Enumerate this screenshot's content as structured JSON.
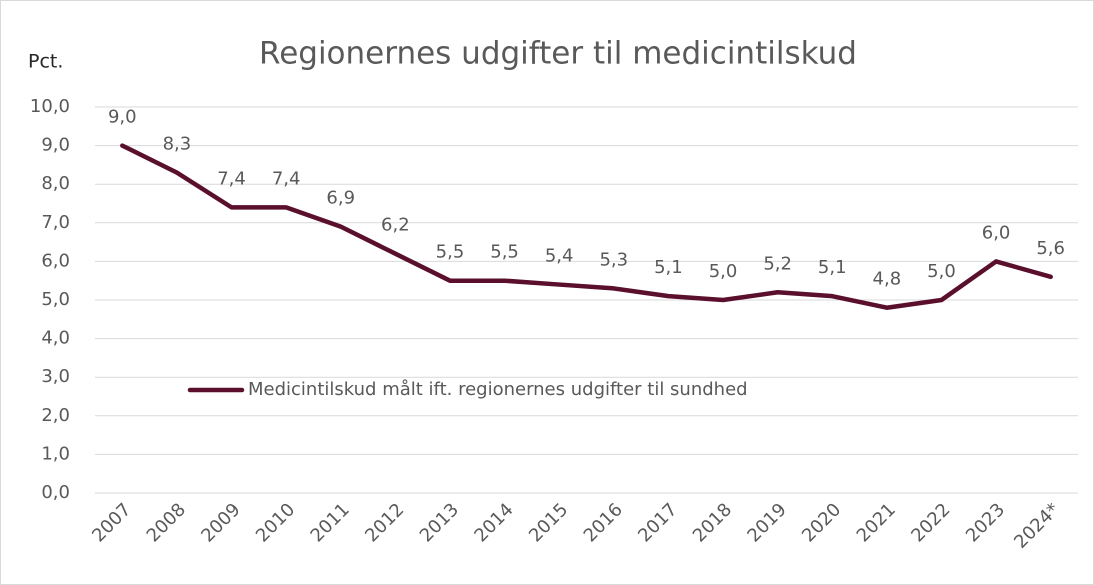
{
  "chart_data": {
    "type": "line",
    "title": "Regionernes udgifter til medicintilskud",
    "y_label": "Pct.",
    "categories": [
      "2007",
      "2008",
      "2009",
      "2010",
      "2011",
      "2012",
      "2013",
      "2014",
      "2015",
      "2016",
      "2017",
      "2018",
      "2019",
      "2020",
      "2021",
      "2022",
      "2023",
      "2024*"
    ],
    "series": [
      {
        "name": "Medicintilskud målt ift. regionernes udgifter til sundhed",
        "color": "#5a0f2c",
        "values": [
          9.0,
          8.3,
          7.4,
          7.4,
          6.9,
          6.2,
          5.5,
          5.5,
          5.4,
          5.3,
          5.1,
          5.0,
          5.2,
          5.1,
          4.8,
          5.0,
          6.0,
          5.6
        ],
        "value_labels": [
          "9,0",
          "8,3",
          "7,4",
          "7,4",
          "6,9",
          "6,2",
          "5,5",
          "5,5",
          "5,4",
          "5,3",
          "5,1",
          "5,0",
          "5,2",
          "5,1",
          "4,8",
          "5,0",
          "6,0",
          "5,6"
        ]
      }
    ],
    "ylim": [
      0,
      10
    ],
    "yticks": [
      {
        "value": 0,
        "label": "0,0"
      },
      {
        "value": 1,
        "label": "1,0"
      },
      {
        "value": 2,
        "label": "2,0"
      },
      {
        "value": 3,
        "label": "3,0"
      },
      {
        "value": 4,
        "label": "4,0"
      },
      {
        "value": 5,
        "label": "5,0"
      },
      {
        "value": 6,
        "label": "6,0"
      },
      {
        "value": 7,
        "label": "7,0"
      },
      {
        "value": 8,
        "label": "8,0"
      },
      {
        "value": 9,
        "label": "9,0"
      },
      {
        "value": 10,
        "label": "10,0"
      }
    ],
    "grid": true
  }
}
